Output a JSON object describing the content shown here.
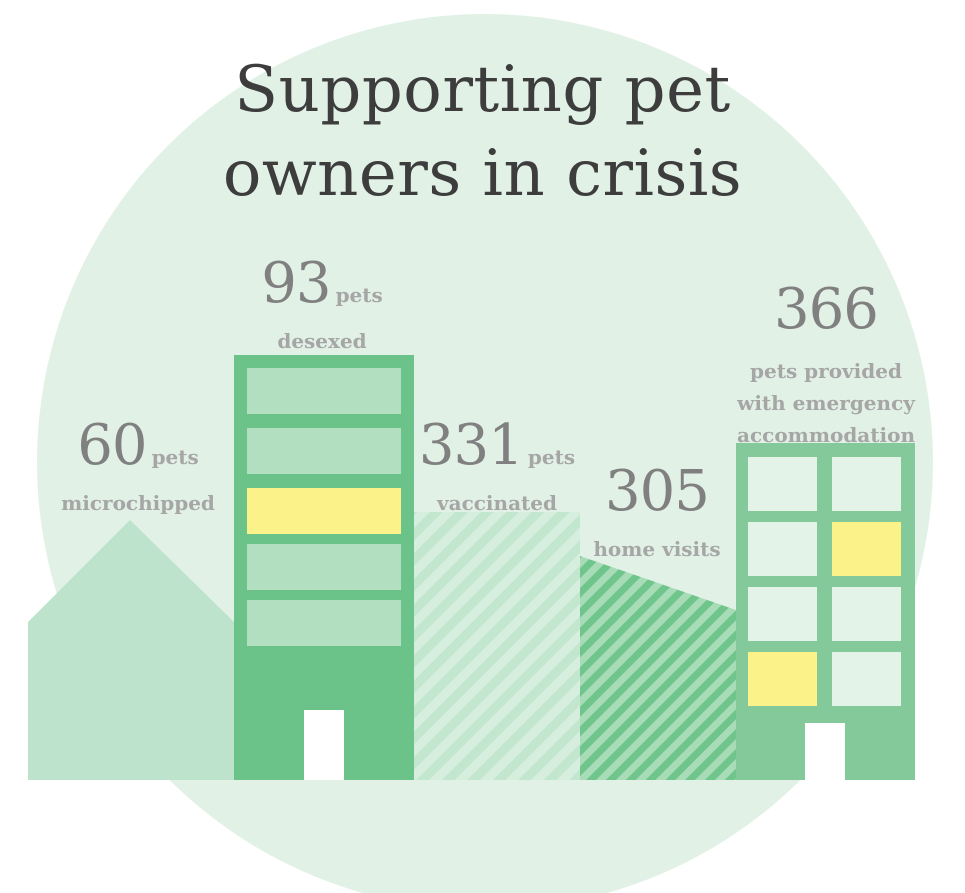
{
  "title": {
    "line1": "Supporting pet",
    "line2": "owners in crisis"
  },
  "stats": [
    {
      "id": "microchipped",
      "value": "60",
      "unit": "pets",
      "label": "microchipped"
    },
    {
      "id": "desexed",
      "value": "93",
      "unit": "pets",
      "label": "desexed"
    },
    {
      "id": "vaccinated",
      "value": "331",
      "unit": "pets",
      "label": "vaccinated"
    },
    {
      "id": "home-visits",
      "value": "305",
      "label": "home visits"
    },
    {
      "id": "emergency-accommodation",
      "value": "366",
      "label_lines": [
        "pets provided",
        "with emergency",
        "accommodation"
      ]
    }
  ],
  "colors": {
    "background_circle": "#e1f1e6",
    "house": "#bde3cd",
    "building_dark": "#6cc389",
    "building_light": "#83c999",
    "window_light": "#b1dfc0",
    "window_pale": "#e3f3e8",
    "window_lit": "#fbf28a",
    "stripe_light": "#c7e7d2",
    "stripe_dark": "#7fcb97",
    "door": "#ffffff"
  }
}
